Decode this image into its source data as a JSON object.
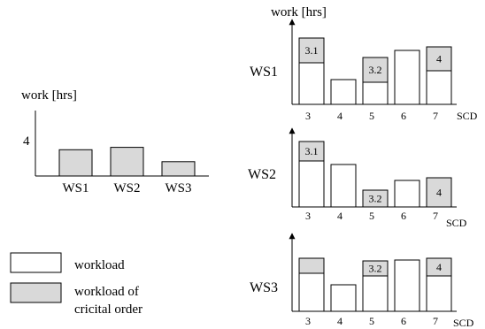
{
  "colors": {
    "workload": "#ffffff",
    "critical": "#d9d9d9",
    "stroke": "#000000"
  },
  "chart_data": [
    {
      "type": "bar",
      "ylabel": "work [hrs]",
      "y_tick": 4,
      "categories": [
        "WS1",
        "WS2",
        "WS3"
      ],
      "values": [
        3.3,
        3.6,
        1.8
      ],
      "fill": "critical"
    },
    {
      "type": "stacked-bar",
      "row_label": "WS1",
      "ylabel": "work [hrs]",
      "xlabel": "SCD",
      "categories": [
        "3",
        "4",
        "5",
        "6",
        "7"
      ],
      "workload": [
        4.7,
        2.8,
        2.5,
        6.1,
        3.8
      ],
      "critical": [
        2.8,
        0,
        2.8,
        0,
        2.7
      ],
      "critical_labels": [
        "3.1",
        "",
        "3.2",
        "",
        "4"
      ]
    },
    {
      "type": "stacked-bar",
      "row_label": "WS2",
      "xlabel": "SCD",
      "categories": [
        "3",
        "4",
        "5",
        "6",
        "7"
      ],
      "workload": [
        5.2,
        4.8,
        0,
        3.0,
        0
      ],
      "critical": [
        2.2,
        0,
        1.9,
        0,
        3.3
      ],
      "critical_labels": [
        "3.1",
        "",
        "3.2",
        "",
        "4"
      ]
    },
    {
      "type": "stacked-bar",
      "row_label": "WS3",
      "xlabel": "SCD",
      "categories": [
        "3",
        "4",
        "5",
        "6",
        "7"
      ],
      "workload": [
        4.3,
        3.0,
        4.0,
        5.8,
        4.0
      ],
      "critical": [
        1.7,
        0,
        1.7,
        0,
        2.0
      ],
      "critical_labels": [
        "",
        "",
        "3.2",
        "",
        "4"
      ]
    }
  ],
  "legend": [
    {
      "label": "workload",
      "fill": "workload"
    },
    {
      "label": "workload of cricital order",
      "lines": [
        "workload of",
        "cricital order"
      ],
      "fill": "critical"
    }
  ]
}
